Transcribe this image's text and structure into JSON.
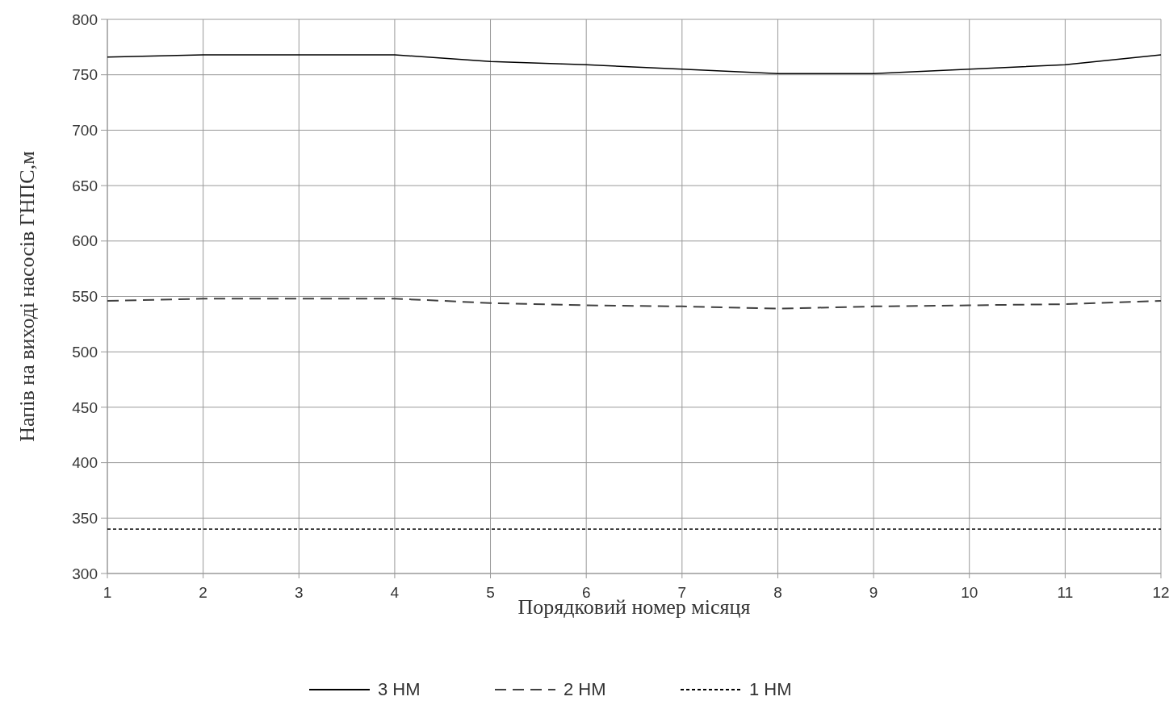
{
  "chart_data": {
    "type": "line",
    "xlabel": "Порядковий номер місяця",
    "ylabel": "Напів на виході насосів ГНПС,м",
    "x": [
      1,
      2,
      3,
      4,
      5,
      6,
      7,
      8,
      9,
      10,
      11,
      12
    ],
    "xlim": [
      1,
      12
    ],
    "xticks": [
      1,
      2,
      3,
      4,
      5,
      6,
      7,
      8,
      9,
      10,
      11,
      12
    ],
    "ylim": [
      300,
      800
    ],
    "yticks": [
      300,
      350,
      400,
      450,
      500,
      550,
      600,
      650,
      700,
      750,
      800
    ],
    "grid": true,
    "legend": "bottom",
    "marker": "none",
    "series": [
      {
        "name": "3 НМ",
        "color": "#000000",
        "line_style": "solid",
        "values": [
          766,
          768,
          768,
          768,
          762,
          759,
          755,
          751,
          751,
          755,
          759,
          768
        ]
      },
      {
        "name": "2 НМ",
        "color": "#404040",
        "line_style": "dashed",
        "values": [
          546,
          548,
          548,
          548,
          544,
          542,
          541,
          539,
          541,
          542,
          543,
          546
        ]
      },
      {
        "name": "1 НМ",
        "color": "#000000",
        "line_style": "dotted",
        "values": [
          340,
          340,
          340,
          340,
          340,
          340,
          340,
          340,
          340,
          340,
          340,
          340
        ]
      }
    ]
  }
}
